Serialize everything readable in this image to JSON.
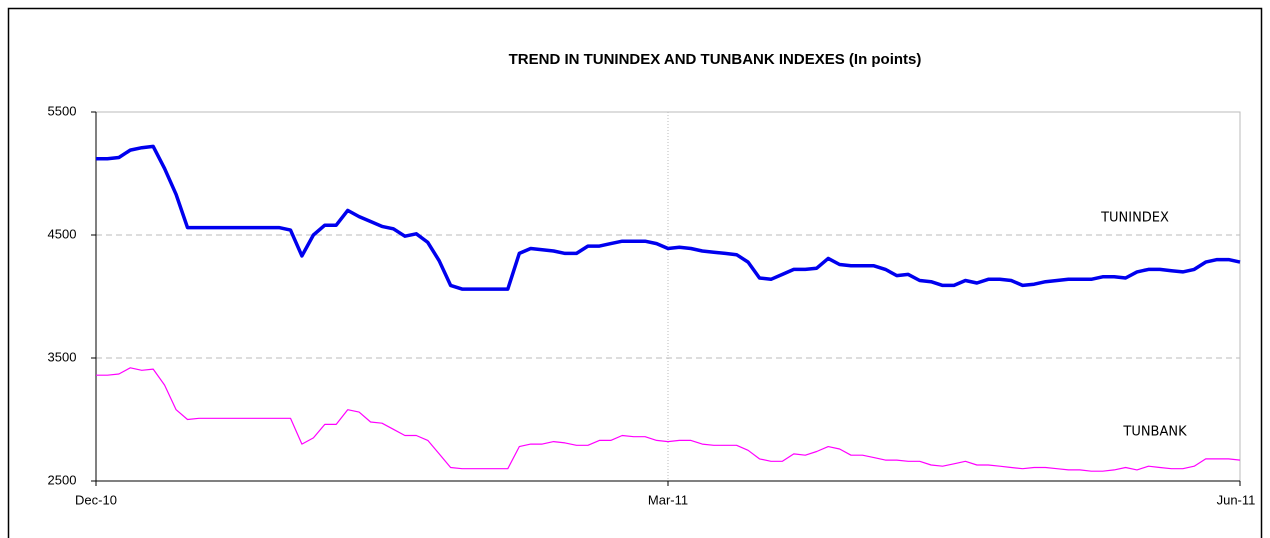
{
  "chart_data": {
    "type": "line",
    "title": "TREND IN TUNINDEX AND TUNBANK  INDEXES  (In points)",
    "categories": [
      "Dec-10",
      null,
      null,
      null,
      null,
      null,
      null,
      null,
      null,
      null,
      null,
      null,
      null,
      null,
      null,
      null,
      null,
      null,
      null,
      null,
      null,
      null,
      null,
      null,
      null,
      null,
      null,
      null,
      null,
      null,
      null,
      null,
      null,
      null,
      null,
      null,
      null,
      null,
      null,
      null,
      null,
      null,
      null,
      null,
      null,
      null,
      null,
      null,
      null,
      null,
      "Mar-11",
      null,
      null,
      null,
      null,
      null,
      null,
      null,
      null,
      null,
      null,
      null,
      null,
      null,
      null,
      null,
      null,
      null,
      null,
      null,
      null,
      null,
      null,
      null,
      null,
      null,
      null,
      null,
      null,
      null,
      null,
      null,
      null,
      null,
      null,
      null,
      null,
      null,
      null,
      null,
      null,
      null,
      null,
      null,
      null,
      null,
      null,
      null,
      null,
      null,
      "Jun-11"
    ],
    "series": [
      {
        "name": "TUNINDEX",
        "color": "#0000ee",
        "values": [
          5120,
          5120,
          5130,
          5190,
          5210,
          5220,
          5040,
          4830,
          4560,
          4560,
          4560,
          4560,
          4560,
          4560,
          4560,
          4560,
          4560,
          4540,
          4330,
          4500,
          4580,
          4580,
          4700,
          4650,
          4610,
          4570,
          4550,
          4490,
          4510,
          4440,
          4290,
          4090,
          4060,
          4060,
          4060,
          4060,
          4060,
          4350,
          4390,
          4380,
          4370,
          4350,
          4350,
          4410,
          4410,
          4430,
          4450,
          4450,
          4450,
          4430,
          4390,
          4400,
          4390,
          4370,
          4360,
          4350,
          4340,
          4280,
          4150,
          4140,
          4180,
          4220,
          4220,
          4230,
          4310,
          4260,
          4250,
          4250,
          4250,
          4220,
          4170,
          4180,
          4130,
          4120,
          4090,
          4090,
          4130,
          4110,
          4140,
          4140,
          4130,
          4090,
          4100,
          4120,
          4130,
          4140,
          4140,
          4140,
          4160,
          4160,
          4150,
          4200,
          4220,
          4220,
          4210,
          4200,
          4220,
          4280,
          4300,
          4300,
          4280
        ]
      },
      {
        "name": "TUNBANK",
        "color": "#ff00ff",
        "values": [
          3360,
          3360,
          3370,
          3420,
          3400,
          3410,
          3280,
          3080,
          3000,
          3010,
          3010,
          3010,
          3010,
          3010,
          3010,
          3010,
          3010,
          3010,
          2800,
          2850,
          2960,
          2960,
          3080,
          3060,
          2980,
          2970,
          2920,
          2870,
          2870,
          2830,
          2720,
          2610,
          2600,
          2600,
          2600,
          2600,
          2600,
          2780,
          2800,
          2800,
          2820,
          2810,
          2790,
          2790,
          2830,
          2830,
          2870,
          2860,
          2860,
          2830,
          2820,
          2830,
          2830,
          2800,
          2790,
          2790,
          2790,
          2750,
          2680,
          2660,
          2660,
          2720,
          2710,
          2740,
          2780,
          2760,
          2710,
          2710,
          2690,
          2670,
          2670,
          2660,
          2660,
          2630,
          2620,
          2640,
          2660,
          2630,
          2630,
          2620,
          2610,
          2600,
          2610,
          2610,
          2600,
          2590,
          2590,
          2580,
          2580,
          2590,
          2610,
          2590,
          2620,
          2610,
          2600,
          2600,
          2620,
          2680,
          2680,
          2680,
          2670
        ]
      }
    ],
    "ylim": [
      2500,
      5500
    ],
    "yticks": [
      2500,
      3500,
      4500,
      5500
    ],
    "grid": true
  }
}
